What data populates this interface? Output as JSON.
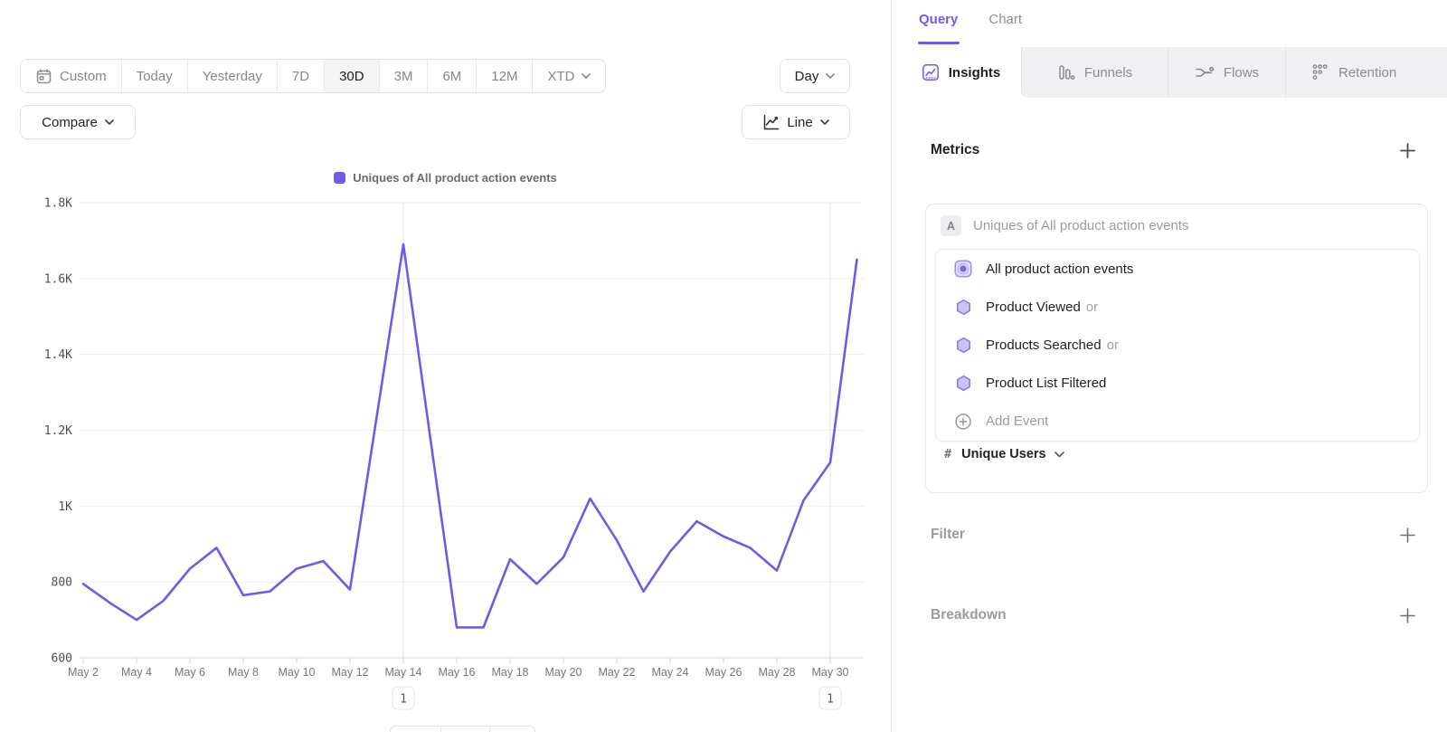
{
  "toolbar": {
    "date_ranges": [
      {
        "label": "Custom",
        "icon": "calendar-icon",
        "selected": false
      },
      {
        "label": "Today",
        "selected": false
      },
      {
        "label": "Yesterday",
        "selected": false
      },
      {
        "label": "7D",
        "selected": false
      },
      {
        "label": "30D",
        "selected": true
      },
      {
        "label": "3M",
        "selected": false
      },
      {
        "label": "6M",
        "selected": false
      },
      {
        "label": "12M",
        "selected": false
      },
      {
        "label": "XTD",
        "selected": false,
        "has_chevron": true
      }
    ],
    "granularity_label": "Day",
    "compare_label": "Compare",
    "chart_type_label": "Line"
  },
  "chart_data": {
    "type": "line",
    "legend": [
      {
        "name": "Uniques of All product action events",
        "color": "#6C5CE7"
      }
    ],
    "x": [
      "May 2",
      "May 3",
      "May 4",
      "May 5",
      "May 6",
      "May 7",
      "May 8",
      "May 9",
      "May 10",
      "May 11",
      "May 12",
      "May 13",
      "May 14",
      "May 15",
      "May 16",
      "May 17",
      "May 18",
      "May 19",
      "May 20",
      "May 21",
      "May 22",
      "May 23",
      "May 24",
      "May 25",
      "May 26",
      "May 27",
      "May 28",
      "May 29",
      "May 30",
      "May 31"
    ],
    "values": [
      795,
      745,
      700,
      750,
      835,
      890,
      765,
      775,
      835,
      855,
      780,
      1235,
      1690,
      1185,
      680,
      680,
      860,
      795,
      865,
      1020,
      910,
      775,
      880,
      960,
      920,
      890,
      830,
      1015,
      1115,
      1650
    ],
    "xtick_labels": [
      "May 2",
      "May 4",
      "May 6",
      "May 8",
      "May 10",
      "May 12",
      "May 14",
      "May 16",
      "May 18",
      "May 20",
      "May 22",
      "May 24",
      "May 26",
      "May 28",
      "May 30"
    ],
    "yticks": [
      600,
      800,
      1000,
      1200,
      1400,
      1600,
      1800
    ],
    "ytick_labels": [
      "600",
      "800",
      "1K",
      "1.2K",
      "1.4K",
      "1.6K",
      "1.8K"
    ],
    "ylim": [
      600,
      1800
    ],
    "grid": true,
    "legend_position": "top-center",
    "annotations": [
      {
        "x": "May 14",
        "label": "1"
      },
      {
        "x": "May 30",
        "label": "1"
      }
    ]
  },
  "query_panel": {
    "view_tabs": [
      {
        "label": "Query",
        "active": true
      },
      {
        "label": "Chart",
        "active": false
      }
    ],
    "report_tabs": [
      {
        "label": "Insights",
        "icon": "insights-icon",
        "active": true
      },
      {
        "label": "Funnels",
        "icon": "funnels-icon",
        "active": false
      },
      {
        "label": "Flows",
        "icon": "flows-icon",
        "active": false
      },
      {
        "label": "Retention",
        "icon": "retention-icon",
        "active": false
      }
    ],
    "metrics": {
      "title": "Metrics",
      "series_badge": "A",
      "series_label": "Uniques of All product action events",
      "events": [
        {
          "label": "All product action events",
          "suffix": "",
          "icon": "all-events-icon"
        },
        {
          "label": "Product Viewed",
          "suffix": "or",
          "icon": "event-hexagon-icon"
        },
        {
          "label": "Products Searched",
          "suffix": "or",
          "icon": "event-hexagon-icon"
        },
        {
          "label": "Product List Filtered",
          "suffix": "",
          "icon": "event-hexagon-icon"
        }
      ],
      "add_event_label": "Add Event",
      "measurement": {
        "prefix": "#",
        "label": "Unique Users"
      }
    },
    "filter": {
      "title": "Filter"
    },
    "breakdown": {
      "title": "Breakdown"
    }
  },
  "colors": {
    "accent": "#6C5CE7",
    "line": "#6C5CE7",
    "inactive_tab_bg": "#F1F1F3",
    "grid": "#EDEDED",
    "axis": "#D9D9DB",
    "y_label": "#4E4E54",
    "x_label": "#76767C",
    "hex_fill": "#C8C2F8",
    "hex_stroke": "#8377F0"
  }
}
